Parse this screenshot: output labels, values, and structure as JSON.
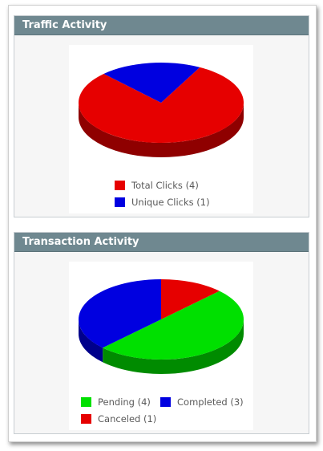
{
  "panels": [
    {
      "title": "Traffic Activity",
      "legend": [
        {
          "label": "Total Clicks (4)",
          "color": "#e60000"
        },
        {
          "label": "Unique Clicks (1)",
          "color": "#0000e0"
        }
      ]
    },
    {
      "title": "Transaction Activity",
      "legend": [
        {
          "label": "Pending (4)",
          "color": "#00e000"
        },
        {
          "label": "Completed (3)",
          "color": "#0000e0"
        },
        {
          "label": "Canceled (1)",
          "color": "#e60000"
        }
      ]
    }
  ],
  "chart_data": [
    {
      "type": "pie",
      "style": "3d",
      "slices": [
        {
          "label": "Total Clicks",
          "value": 4,
          "color": "#e60000"
        },
        {
          "label": "Unique Clicks",
          "value": 1,
          "color": "#0000e0"
        }
      ]
    },
    {
      "type": "pie",
      "style": "3d",
      "slices": [
        {
          "label": "Pending",
          "value": 4,
          "color": "#00e000"
        },
        {
          "label": "Completed",
          "value": 3,
          "color": "#0000e0"
        },
        {
          "label": "Canceled",
          "value": 1,
          "color": "#e60000"
        }
      ]
    }
  ]
}
